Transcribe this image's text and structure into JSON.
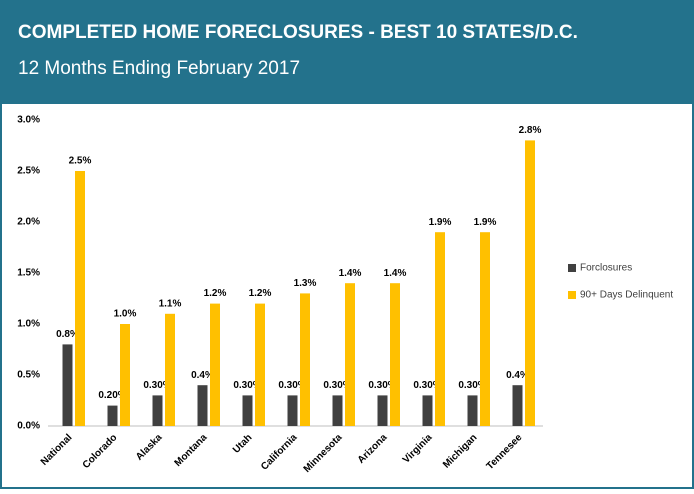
{
  "chart_data": {
    "type": "bar",
    "title": "COMPLETED HOME FORECLOSURES - BEST 10 STATES/D.C.",
    "subtitle": "12 Months Ending February 2017",
    "categories": [
      "National",
      "Colorado",
      "Alaska",
      "Montana",
      "Utah",
      "California",
      "Minnesota",
      "Arizona",
      "Virginia",
      "Michigan",
      "Tennesee"
    ],
    "series": [
      {
        "name": "Forclosures",
        "color": "#404040",
        "values": [
          0.8,
          0.2,
          0.3,
          0.4,
          0.3,
          0.3,
          0.3,
          0.3,
          0.3,
          0.3,
          0.4
        ],
        "value_labels": [
          "0.8%",
          "0.20%",
          "0.30%",
          "0.4%",
          "0.30%",
          "0.30%",
          "0.30%",
          "0.30%",
          "0.30%",
          "0.30%",
          "0.4%"
        ]
      },
      {
        "name": "90+ Days Delinquent",
        "color": "#ffc000",
        "values": [
          2.5,
          1.0,
          1.1,
          1.2,
          1.2,
          1.3,
          1.4,
          1.4,
          1.9,
          1.9,
          2.8
        ],
        "value_labels": [
          "2.5%",
          "1.0%",
          "1.1%",
          "1.2%",
          "1.2%",
          "1.3%",
          "1.4%",
          "1.4%",
          "1.9%",
          "1.9%",
          "2.8%"
        ]
      }
    ],
    "ylim": [
      0,
      3
    ],
    "yticks": [
      {
        "value": 0,
        "label": "0.0%"
      },
      {
        "value": 0.5,
        "label": "0.5%"
      },
      {
        "value": 1,
        "label": "1.0%"
      },
      {
        "value": 1.5,
        "label": "1.5%"
      },
      {
        "value": 2,
        "label": "2.0%"
      },
      {
        "value": 2.5,
        "label": "2.5%"
      },
      {
        "value": 3,
        "label": "3.0%"
      }
    ],
    "grid": false,
    "legend": "right"
  }
}
